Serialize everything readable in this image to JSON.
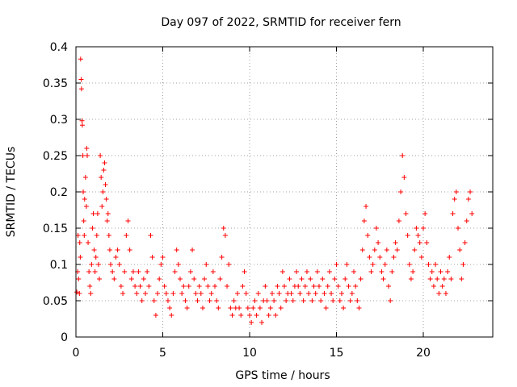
{
  "chart_data": {
    "type": "scatter",
    "title": "Day 097 of 2022, SRMTID for receiver fern",
    "xlabel": "GPS time / hours",
    "ylabel": "SRMTID / TECUs",
    "xlim": [
      0,
      24
    ],
    "ylim": [
      0,
      0.4
    ],
    "xticks": [
      0,
      5,
      10,
      15,
      20
    ],
    "xtick_labels": [
      "0",
      "5",
      "10",
      "15",
      "20"
    ],
    "yticks": [
      0,
      0.05,
      0.1,
      0.15,
      0.2,
      0.25,
      0.3,
      0.35,
      0.4
    ],
    "ytick_labels": [
      "0",
      "0.05",
      "0.1",
      "0.15",
      "0.2",
      "0.25",
      "0.3",
      "0.35",
      "0.4"
    ],
    "grid": true,
    "marker": "plus",
    "color": "#ff0000",
    "points": [
      [
        0.05,
        0.062
      ],
      [
        0.1,
        0.09
      ],
      [
        0.12,
        0.14
      ],
      [
        0.15,
        0.08
      ],
      [
        0.2,
        0.06
      ],
      [
        0.22,
        0.13
      ],
      [
        0.25,
        0.11
      ],
      [
        0.27,
        0.383
      ],
      [
        0.3,
        0.355
      ],
      [
        0.32,
        0.342
      ],
      [
        0.35,
        0.298
      ],
      [
        0.37,
        0.292
      ],
      [
        0.4,
        0.25
      ],
      [
        0.42,
        0.2
      ],
      [
        0.45,
        0.16
      ],
      [
        0.48,
        0.14
      ],
      [
        0.5,
        0.19
      ],
      [
        0.55,
        0.22
      ],
      [
        0.6,
        0.18
      ],
      [
        0.62,
        0.26
      ],
      [
        0.65,
        0.25
      ],
      [
        0.7,
        0.13
      ],
      [
        0.75,
        0.09
      ],
      [
        0.8,
        0.07
      ],
      [
        0.85,
        0.06
      ],
      [
        0.9,
        0.1
      ],
      [
        0.95,
        0.15
      ],
      [
        1.0,
        0.17
      ],
      [
        1.05,
        0.12
      ],
      [
        1.1,
        0.09
      ],
      [
        1.15,
        0.11
      ],
      [
        1.2,
        0.14
      ],
      [
        1.25,
        0.17
      ],
      [
        1.3,
        0.1
      ],
      [
        1.35,
        0.08
      ],
      [
        1.4,
        0.25
      ],
      [
        1.45,
        0.22
      ],
      [
        1.5,
        0.18
      ],
      [
        1.55,
        0.2
      ],
      [
        1.6,
        0.23
      ],
      [
        1.65,
        0.24
      ],
      [
        1.7,
        0.21
      ],
      [
        1.75,
        0.19
      ],
      [
        1.8,
        0.16
      ],
      [
        1.85,
        0.17
      ],
      [
        1.9,
        0.14
      ],
      [
        1.95,
        0.12
      ],
      [
        2.0,
        0.1
      ],
      [
        2.1,
        0.09
      ],
      [
        2.2,
        0.08
      ],
      [
        2.3,
        0.11
      ],
      [
        2.4,
        0.12
      ],
      [
        2.5,
        0.1
      ],
      [
        2.6,
        0.07
      ],
      [
        2.7,
        0.06
      ],
      [
        2.8,
        0.09
      ],
      [
        2.9,
        0.14
      ],
      [
        3.0,
        0.16
      ],
      [
        3.1,
        0.12
      ],
      [
        3.2,
        0.08
      ],
      [
        3.3,
        0.09
      ],
      [
        3.4,
        0.07
      ],
      [
        3.5,
        0.06
      ],
      [
        3.6,
        0.09
      ],
      [
        3.7,
        0.07
      ],
      [
        3.8,
        0.05
      ],
      [
        3.9,
        0.08
      ],
      [
        4.0,
        0.06
      ],
      [
        4.1,
        0.09
      ],
      [
        4.2,
        0.07
      ],
      [
        4.3,
        0.14
      ],
      [
        4.4,
        0.11
      ],
      [
        4.5,
        0.05
      ],
      [
        4.6,
        0.03
      ],
      [
        4.7,
        0.06
      ],
      [
        4.8,
        0.08
      ],
      [
        4.9,
        0.1
      ],
      [
        5.0,
        0.11
      ],
      [
        5.1,
        0.07
      ],
      [
        5.2,
        0.06
      ],
      [
        5.3,
        0.05
      ],
      [
        5.4,
        0.04
      ],
      [
        5.5,
        0.03
      ],
      [
        5.6,
        0.06
      ],
      [
        5.7,
        0.09
      ],
      [
        5.8,
        0.12
      ],
      [
        5.9,
        0.1
      ],
      [
        6.0,
        0.08
      ],
      [
        6.1,
        0.06
      ],
      [
        6.2,
        0.07
      ],
      [
        6.3,
        0.05
      ],
      [
        6.4,
        0.04
      ],
      [
        6.5,
        0.07
      ],
      [
        6.6,
        0.09
      ],
      [
        6.7,
        0.12
      ],
      [
        6.8,
        0.08
      ],
      [
        6.9,
        0.06
      ],
      [
        7.0,
        0.05
      ],
      [
        7.1,
        0.07
      ],
      [
        7.2,
        0.06
      ],
      [
        7.3,
        0.04
      ],
      [
        7.4,
        0.08
      ],
      [
        7.5,
        0.1
      ],
      [
        7.6,
        0.07
      ],
      [
        7.7,
        0.05
      ],
      [
        7.8,
        0.06
      ],
      [
        7.9,
        0.09
      ],
      [
        8.0,
        0.07
      ],
      [
        8.1,
        0.05
      ],
      [
        8.2,
        0.04
      ],
      [
        8.3,
        0.08
      ],
      [
        8.4,
        0.11
      ],
      [
        8.5,
        0.15
      ],
      [
        8.6,
        0.14
      ],
      [
        8.7,
        0.07
      ],
      [
        8.8,
        0.1
      ],
      [
        8.9,
        0.04
      ],
      [
        9.0,
        0.03
      ],
      [
        9.1,
        0.05
      ],
      [
        9.2,
        0.04
      ],
      [
        9.3,
        0.06
      ],
      [
        9.4,
        0.04
      ],
      [
        9.5,
        0.03
      ],
      [
        9.6,
        0.07
      ],
      [
        9.7,
        0.09
      ],
      [
        9.8,
        0.06
      ],
      [
        9.9,
        0.04
      ],
      [
        10.0,
        0.03
      ],
      [
        10.1,
        0.02
      ],
      [
        10.2,
        0.04
      ],
      [
        10.3,
        0.05
      ],
      [
        10.4,
        0.03
      ],
      [
        10.5,
        0.06
      ],
      [
        10.6,
        0.04
      ],
      [
        10.7,
        0.02
      ],
      [
        10.8,
        0.05
      ],
      [
        10.9,
        0.07
      ],
      [
        11.0,
        0.05
      ],
      [
        11.1,
        0.03
      ],
      [
        11.2,
        0.04
      ],
      [
        11.3,
        0.06
      ],
      [
        11.4,
        0.05
      ],
      [
        11.5,
        0.03
      ],
      [
        11.6,
        0.07
      ],
      [
        11.7,
        0.06
      ],
      [
        11.8,
        0.04
      ],
      [
        11.9,
        0.09
      ],
      [
        12.0,
        0.07
      ],
      [
        12.1,
        0.05
      ],
      [
        12.2,
        0.06
      ],
      [
        12.3,
        0.08
      ],
      [
        12.4,
        0.06
      ],
      [
        12.5,
        0.05
      ],
      [
        12.6,
        0.07
      ],
      [
        12.7,
        0.09
      ],
      [
        12.8,
        0.07
      ],
      [
        12.9,
        0.06
      ],
      [
        13.0,
        0.08
      ],
      [
        13.1,
        0.05
      ],
      [
        13.2,
        0.07
      ],
      [
        13.3,
        0.09
      ],
      [
        13.4,
        0.06
      ],
      [
        13.5,
        0.08
      ],
      [
        13.6,
        0.05
      ],
      [
        13.7,
        0.07
      ],
      [
        13.8,
        0.06
      ],
      [
        13.9,
        0.09
      ],
      [
        14.0,
        0.07
      ],
      [
        14.1,
        0.05
      ],
      [
        14.2,
        0.08
      ],
      [
        14.3,
        0.06
      ],
      [
        14.4,
        0.04
      ],
      [
        14.5,
        0.07
      ],
      [
        14.6,
        0.09
      ],
      [
        14.7,
        0.06
      ],
      [
        14.8,
        0.05
      ],
      [
        14.9,
        0.08
      ],
      [
        15.0,
        0.1
      ],
      [
        15.1,
        0.07
      ],
      [
        15.2,
        0.05
      ],
      [
        15.3,
        0.06
      ],
      [
        15.4,
        0.04
      ],
      [
        15.5,
        0.08
      ],
      [
        15.6,
        0.1
      ],
      [
        15.7,
        0.07
      ],
      [
        15.8,
        0.05
      ],
      [
        15.9,
        0.06
      ],
      [
        16.0,
        0.09
      ],
      [
        16.1,
        0.07
      ],
      [
        16.2,
        0.05
      ],
      [
        16.3,
        0.04
      ],
      [
        16.4,
        0.08
      ],
      [
        16.5,
        0.12
      ],
      [
        16.6,
        0.16
      ],
      [
        16.7,
        0.18
      ],
      [
        16.8,
        0.14
      ],
      [
        16.9,
        0.11
      ],
      [
        17.0,
        0.09
      ],
      [
        17.1,
        0.1
      ],
      [
        17.2,
        0.12
      ],
      [
        17.3,
        0.15
      ],
      [
        17.4,
        0.13
      ],
      [
        17.5,
        0.11
      ],
      [
        17.6,
        0.09
      ],
      [
        17.7,
        0.08
      ],
      [
        17.8,
        0.1
      ],
      [
        17.9,
        0.12
      ],
      [
        18.0,
        0.07
      ],
      [
        18.1,
        0.05
      ],
      [
        18.2,
        0.09
      ],
      [
        18.3,
        0.11
      ],
      [
        18.4,
        0.13
      ],
      [
        18.5,
        0.12
      ],
      [
        18.6,
        0.16
      ],
      [
        18.7,
        0.2
      ],
      [
        18.8,
        0.25
      ],
      [
        18.9,
        0.22
      ],
      [
        19.0,
        0.17
      ],
      [
        19.1,
        0.14
      ],
      [
        19.2,
        0.1
      ],
      [
        19.3,
        0.08
      ],
      [
        19.4,
        0.09
      ],
      [
        19.5,
        0.12
      ],
      [
        19.6,
        0.15
      ],
      [
        19.7,
        0.14
      ],
      [
        19.8,
        0.13
      ],
      [
        19.9,
        0.11
      ],
      [
        20.0,
        0.15
      ],
      [
        20.1,
        0.17
      ],
      [
        20.2,
        0.13
      ],
      [
        20.3,
        0.1
      ],
      [
        20.4,
        0.08
      ],
      [
        20.5,
        0.09
      ],
      [
        20.6,
        0.07
      ],
      [
        20.7,
        0.1
      ],
      [
        20.8,
        0.08
      ],
      [
        20.9,
        0.06
      ],
      [
        21.0,
        0.09
      ],
      [
        21.1,
        0.07
      ],
      [
        21.2,
        0.08
      ],
      [
        21.3,
        0.06
      ],
      [
        21.4,
        0.09
      ],
      [
        21.5,
        0.11
      ],
      [
        21.6,
        0.08
      ],
      [
        21.7,
        0.17
      ],
      [
        21.8,
        0.19
      ],
      [
        21.9,
        0.2
      ],
      [
        22.0,
        0.15
      ],
      [
        22.1,
        0.12
      ],
      [
        22.2,
        0.08
      ],
      [
        22.3,
        0.1
      ],
      [
        22.4,
        0.13
      ],
      [
        22.5,
        0.16
      ],
      [
        22.6,
        0.19
      ],
      [
        22.7,
        0.2
      ],
      [
        22.8,
        0.17
      ]
    ]
  }
}
